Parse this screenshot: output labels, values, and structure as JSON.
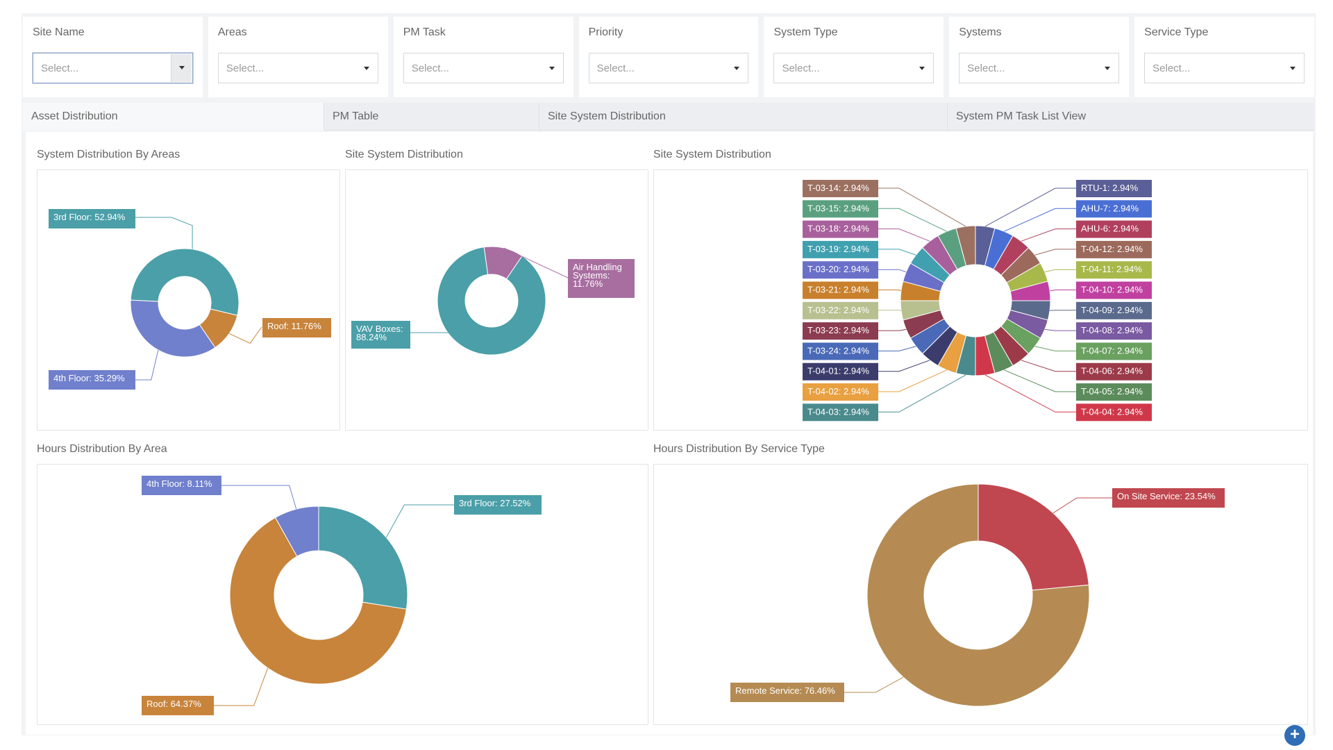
{
  "filters": [
    {
      "label": "Site Name",
      "placeholder": "Select..."
    },
    {
      "label": "Areas",
      "placeholder": "Select..."
    },
    {
      "label": "PM Task",
      "placeholder": "Select..."
    },
    {
      "label": "Priority",
      "placeholder": "Select..."
    },
    {
      "label": "System Type",
      "placeholder": "Select..."
    },
    {
      "label": "Systems",
      "placeholder": "Select..."
    },
    {
      "label": "Service Type",
      "placeholder": "Select..."
    }
  ],
  "tabs": [
    {
      "label": "Asset Distribution",
      "active": true
    },
    {
      "label": "PM Table",
      "active": false
    },
    {
      "label": "Site System Distribution",
      "active": false
    },
    {
      "label": "System PM Task List View",
      "active": false
    }
  ],
  "panels": {
    "areas_title": "System Distribution By Areas",
    "site_system_title": "Site System Distribution",
    "site_system_detail_title": "Site System Distribution",
    "hours_area_title": "Hours Distribution By Area",
    "hours_service_title": "Hours Distribution By Service Type"
  },
  "chart_data": [
    {
      "id": "areas",
      "type": "pie",
      "title": "System Distribution By Areas",
      "slices": [
        {
          "label": "3rd Floor: 52.94%",
          "value": 52.94,
          "color": "#4a9fa8"
        },
        {
          "label": "Roof: 11.76%",
          "value": 11.76,
          "color": "#c8843b"
        },
        {
          "label": "4th Floor: 35.29%",
          "value": 35.29,
          "color": "#7080cc"
        }
      ]
    },
    {
      "id": "site_system",
      "type": "pie",
      "title": "Site System Distribution",
      "slices": [
        {
          "label": "VAV Boxes: 88.24%",
          "value": 88.24,
          "color": "#4a9fa8"
        },
        {
          "label": "Air Handling Systems: 11.76%",
          "value": 11.76,
          "color": "#a86ea0"
        }
      ]
    },
    {
      "id": "site_system_detail",
      "type": "pie",
      "title": "Site System Distribution",
      "slices": [
        {
          "label": "RTU-1: 2.94%",
          "value": 2.94,
          "color": "#5b5f97"
        },
        {
          "label": "AHU-7: 2.94%",
          "value": 2.94,
          "color": "#4a6fd4"
        },
        {
          "label": "AHU-6: 2.94%",
          "value": 2.94,
          "color": "#b0405e"
        },
        {
          "label": "T-04-12: 2.94%",
          "value": 2.94,
          "color": "#9c6a5c"
        },
        {
          "label": "T-04-11: 2.94%",
          "value": 2.94,
          "color": "#a8b84a"
        },
        {
          "label": "T-04-10: 2.94%",
          "value": 2.94,
          "color": "#c040a0"
        },
        {
          "label": "T-04-09: 2.94%",
          "value": 2.94,
          "color": "#5a6a8c"
        },
        {
          "label": "T-04-08: 2.94%",
          "value": 2.94,
          "color": "#7a5aa0"
        },
        {
          "label": "T-04-07: 2.94%",
          "value": 2.94,
          "color": "#6aa060"
        },
        {
          "label": "T-04-06: 2.94%",
          "value": 2.94,
          "color": "#9c3a4a"
        },
        {
          "label": "T-04-05: 2.94%",
          "value": 2.94,
          "color": "#5c8c5c"
        },
        {
          "label": "T-04-04: 2.94%",
          "value": 2.94,
          "color": "#d0384a"
        },
        {
          "label": "T-04-03: 2.94%",
          "value": 2.94,
          "color": "#4a8a8c"
        },
        {
          "label": "T-04-02: 2.94%",
          "value": 2.94,
          "color": "#e8a040"
        },
        {
          "label": "T-04-01: 2.94%",
          "value": 2.94,
          "color": "#3c3c6c"
        },
        {
          "label": "T-03-24: 2.94%",
          "value": 2.94,
          "color": "#4a6ab8"
        },
        {
          "label": "T-03-23: 2.94%",
          "value": 2.94,
          "color": "#8c3c50"
        },
        {
          "label": "T-03-22: 2.94%",
          "value": 2.94,
          "color": "#b8c090"
        },
        {
          "label": "T-03-21: 2.94%",
          "value": 2.94,
          "color": "#c8802c"
        },
        {
          "label": "T-03-20: 2.94%",
          "value": 2.94,
          "color": "#6a70c8"
        },
        {
          "label": "T-03-19: 2.94%",
          "value": 2.94,
          "color": "#40a0b0"
        },
        {
          "label": "T-03-18: 2.94%",
          "value": 2.94,
          "color": "#a8609c"
        },
        {
          "label": "T-03-15: 2.94%",
          "value": 2.94,
          "color": "#5aa080"
        },
        {
          "label": "T-03-14: 2.94%",
          "value": 2.94,
          "color": "#9c7060"
        }
      ]
    },
    {
      "id": "hours_area",
      "type": "pie",
      "title": "Hours Distribution By Area",
      "slices": [
        {
          "label": "3rd Floor: 27.52%",
          "value": 27.52,
          "color": "#4a9fa8"
        },
        {
          "label": "Roof: 64.37%",
          "value": 64.37,
          "color": "#c8843b"
        },
        {
          "label": "4th Floor: 8.11%",
          "value": 8.11,
          "color": "#7080cc"
        }
      ]
    },
    {
      "id": "hours_service",
      "type": "pie",
      "title": "Hours Distribution By Service Type",
      "slices": [
        {
          "label": "On Site Service: 23.54%",
          "value": 23.54,
          "color": "#c0474f"
        },
        {
          "label": "Remote Service: 76.46%",
          "value": 76.46,
          "color": "#b58b53"
        }
      ]
    }
  ]
}
